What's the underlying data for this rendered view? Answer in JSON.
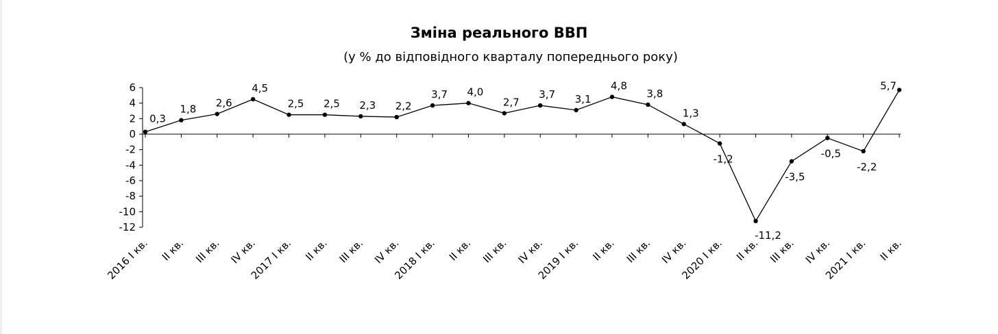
{
  "chart_data": {
    "type": "line",
    "title": "Зміна реального ВВП",
    "subtitle": "(у % до відповідного кварталу попереднього року)",
    "xlabel": "",
    "ylabel": "",
    "ylim": [
      -12,
      6
    ],
    "yticks": [
      6,
      4,
      2,
      0,
      -2,
      -4,
      -6,
      -8,
      -10,
      -12
    ],
    "grid": false,
    "line_color": "#000000",
    "categories": [
      "2016 I кв.",
      "II кв.",
      "III кв.",
      "IV кв.",
      "2017 I кв.",
      "II кв.",
      "III кв.",
      "IV кв.",
      "2018 I кв.",
      "II кв.",
      "III кв.",
      "IV кв.",
      "2019 I кв.",
      "II кв.",
      "III кв.",
      "IV кв.",
      "2020 I кв.",
      "II кв.",
      "III кв.",
      "IV кв.",
      "2021 I кв.",
      "II кв."
    ],
    "series": [
      {
        "values": [
          0.3,
          1.8,
          2.6,
          4.5,
          2.5,
          2.5,
          2.3,
          2.2,
          3.7,
          4.0,
          2.7,
          3.7,
          3.1,
          4.8,
          3.8,
          1.3,
          -1.2,
          -11.2,
          -3.5,
          -0.5,
          -2.2,
          5.7
        ],
        "labels": [
          "0,3",
          "1,8",
          "2,6",
          "4,5",
          "2,5",
          "2,5",
          "2,3",
          "2,2",
          "3,7",
          "4,0",
          "2,7",
          "3,7",
          "3,1",
          "4,8",
          "3,8",
          "1,3",
          "-1,2",
          "-11,2",
          "-3,5",
          "-0,5",
          "-2,2",
          "5,7"
        ]
      }
    ]
  }
}
